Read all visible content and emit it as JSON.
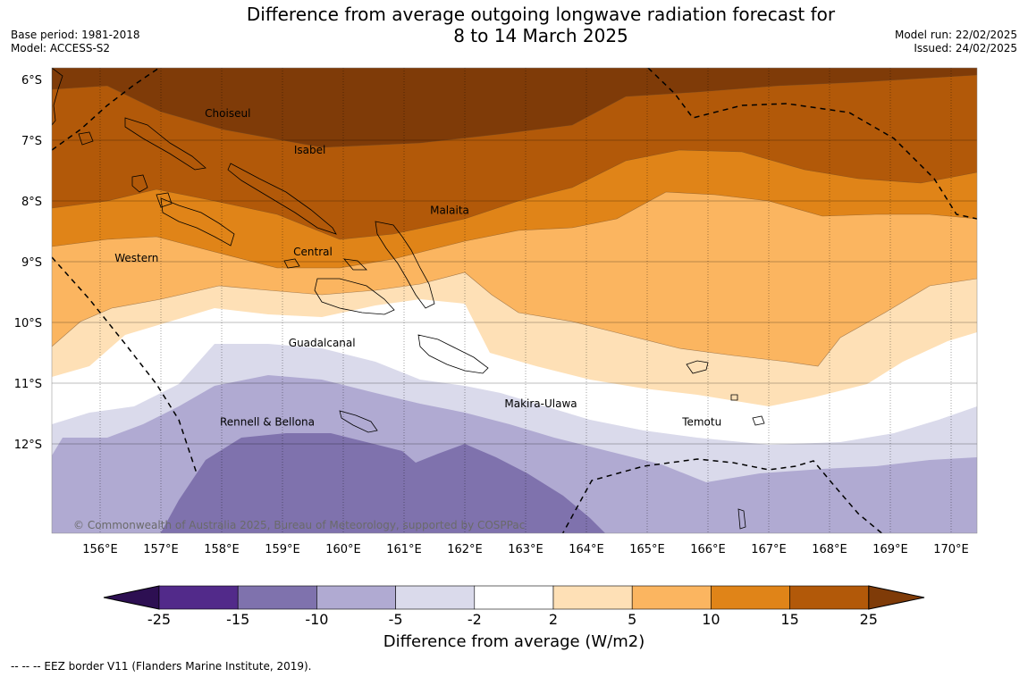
{
  "title_line1": "Difference from average outgoing longwave radiation forecast for",
  "title_line2": "8 to 14 March 2025",
  "base_period": "Base period: 1981-2018",
  "model": "Model: ACCESS-S2",
  "model_run": "Model run: 22/02/2025",
  "issued": "Issued: 24/02/2025",
  "copyright": "© Commonwealth of Australia 2025, Bureau of Meteorology, supported by COSPPac",
  "lat_labels": [
    "6°S",
    "7°S",
    "8°S",
    "9°S",
    "10°S",
    "11°S",
    "12°S"
  ],
  "lon_labels": [
    "156°E",
    "157°E",
    "158°E",
    "159°E",
    "160°E",
    "161°E",
    "162°E",
    "163°E",
    "164°E",
    "165°E",
    "166°E",
    "167°E",
    "168°E",
    "169°E",
    "170°E"
  ],
  "regions": [
    {
      "name": "Choiseul",
      "lon": 158.1,
      "lat": -6.62
    },
    {
      "name": "Isabel",
      "lon": 159.45,
      "lat": -7.22
    },
    {
      "name": "Malaita",
      "lon": 161.75,
      "lat": -8.21
    },
    {
      "name": "Western",
      "lon": 156.6,
      "lat": -9.0
    },
    {
      "name": "Central",
      "lon": 159.5,
      "lat": -8.9
    },
    {
      "name": "Guadalcanal",
      "lon": 159.65,
      "lat": -10.4
    },
    {
      "name": "Makira-Ulawa",
      "lon": 163.25,
      "lat": -11.4
    },
    {
      "name": "Temotu",
      "lon": 165.9,
      "lat": -11.7
    },
    {
      "name": "Rennell & Bellona",
      "lon": 158.75,
      "lat": -11.7
    }
  ],
  "colorbar": {
    "ticks": [
      "-25",
      "-15",
      "-10",
      "-5",
      "-2",
      "2",
      "5",
      "10",
      "15",
      "25"
    ],
    "colors": [
      "#522a8a",
      "#7f72ad",
      "#b0aad2",
      "#dadaeb",
      "#ffffff",
      "#fee0b6",
      "#fbb560",
      "#e08418",
      "#b25909"
    ],
    "under_color": "#2d0f52",
    "over_color": "#7f3b08",
    "label": "Difference from average (W/m2)"
  },
  "footer": "--  --  -- EEZ border V11 (Flanders Marine Institute, 2019)."
}
